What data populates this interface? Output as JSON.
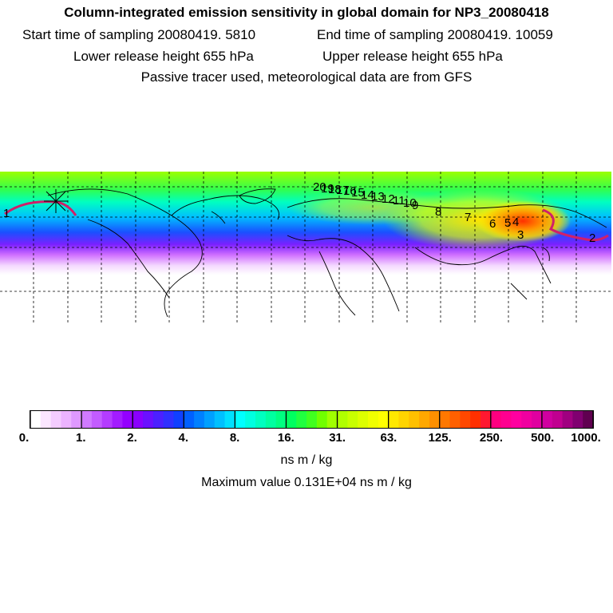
{
  "header": {
    "title": "Column-integrated emission sensitivity in global domain for NP3_20080418",
    "start_label": "Start time of sampling 20080419.  5810",
    "end_label": "End time of sampling 20080419. 10059",
    "lower_label": "Lower release height  655 hPa",
    "upper_label": "Upper release height  655 hPa",
    "note": "Passive tracer used, meteorological data are from GFS"
  },
  "map": {
    "trajectory_labels": [
      "20",
      "19",
      "18",
      "17",
      "16",
      "15",
      "14",
      "13",
      "12",
      "11",
      "10",
      "9",
      "8",
      "7",
      "6",
      "5",
      "4",
      "3",
      "2",
      "1"
    ],
    "trajectory_color": "#d0206a"
  },
  "colorbar": {
    "ticks": [
      "0.",
      "1.",
      "2.",
      "4.",
      "8.",
      "16.",
      "31.",
      "63.",
      "125.",
      "250.",
      "500.",
      "1000."
    ],
    "colors": [
      "#ffffff",
      "#fbe6ff",
      "#f4ccff",
      "#ecb3ff",
      "#df99ff",
      "#d07aff",
      "#c35cff",
      "#b43cff",
      "#a31cff",
      "#9400ff",
      "#8a00ff",
      "#6b10ff",
      "#4c20ff",
      "#3030ff",
      "#1040ff",
      "#0060ff",
      "#0080ff",
      "#00a0ff",
      "#00c0ff",
      "#00e0ff",
      "#00ffff",
      "#00ffe0",
      "#00ffc0",
      "#00ffa0",
      "#00ff80",
      "#00ff60",
      "#20ff40",
      "#40ff20",
      "#70ff00",
      "#a0ff00",
      "#b0ff00",
      "#c8ff00",
      "#ddff00",
      "#f0ff00",
      "#ffff00",
      "#ffe800",
      "#ffd400",
      "#ffc000",
      "#ffa800",
      "#ff9000",
      "#ff7800",
      "#ff6000",
      "#ff4800",
      "#ff3000",
      "#ff1830",
      "#ff0080",
      "#ff0090",
      "#ff00a0",
      "#f000a0",
      "#e000a0",
      "#d000a0",
      "#c00090",
      "#a00080",
      "#800070",
      "#600050"
    ],
    "units": "ns m / kg",
    "max_value": "Maximum value  0.131E+04 ns m / kg"
  }
}
